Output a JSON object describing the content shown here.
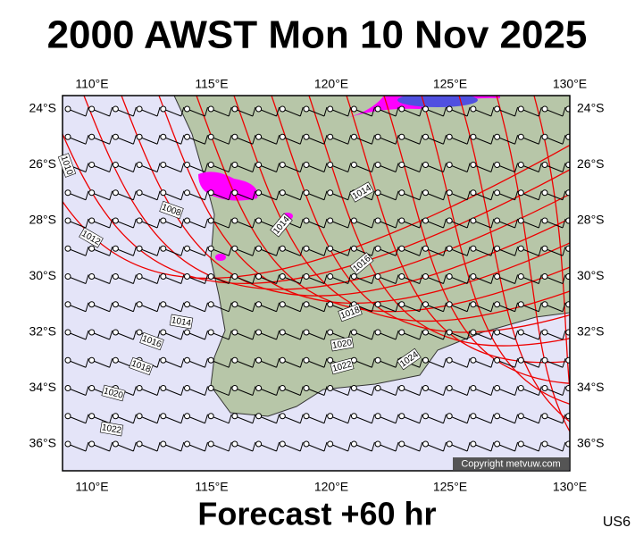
{
  "header": {
    "title": "2000 AWST Mon 10 Nov 2025"
  },
  "map": {
    "lon_labels": [
      "110°E",
      "115°E",
      "120°E",
      "125°E",
      "130°E"
    ],
    "lat_labels": [
      "24°S",
      "26°S",
      "28°S",
      "30°S",
      "32°S",
      "34°S",
      "36°S"
    ],
    "isobar_labels": [
      "1010",
      "1008",
      "1012",
      "1014",
      "1014",
      "1016",
      "1018",
      "1014",
      "1016",
      "1018",
      "1020",
      "1022",
      "1020",
      "1022",
      "1024"
    ],
    "copyright": "Copyright metvuw.com"
  },
  "footer": {
    "forecast": "Forecast +60 hr",
    "code": "US6"
  }
}
